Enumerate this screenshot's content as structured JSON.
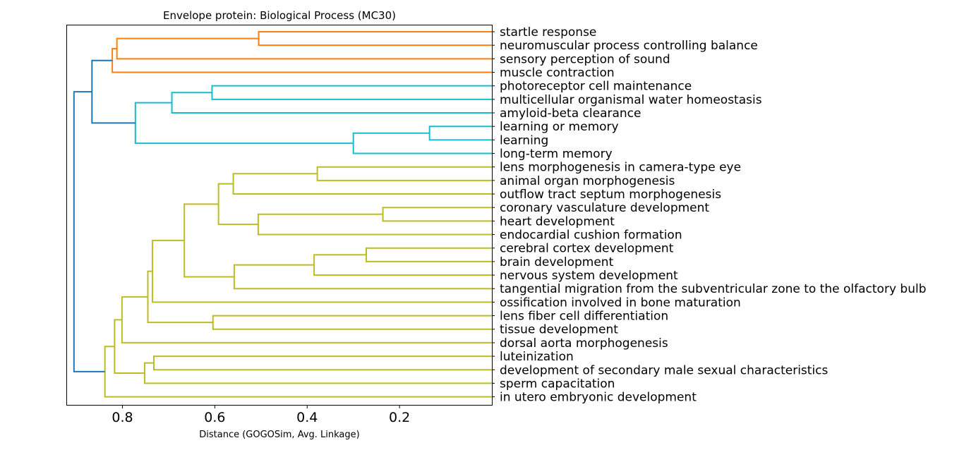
{
  "chart_data": {
    "type": "dendrogram",
    "title": "Envelope protein: Biological Process (MC30)",
    "xlabel": "Distance (GOGOSim, Avg. Linkage)",
    "xlim": [
      0.92,
      0.0
    ],
    "xticks": [
      {
        "value": 0.8,
        "label": "0.8"
      },
      {
        "value": 0.6,
        "label": "0.6"
      },
      {
        "value": 0.4,
        "label": "0.4"
      },
      {
        "value": 0.2,
        "label": "0.2"
      }
    ],
    "colors": {
      "orange": "#ff7f0e",
      "cyan": "#17becf",
      "olive": "#bcbd22",
      "blue": "#1f77b4"
    },
    "leaves": [
      "startle response",
      "neuromuscular process controlling balance",
      "sensory perception of sound",
      "muscle contraction",
      "photoreceptor cell maintenance",
      "multicellular organismal water homeostasis",
      "amyloid-beta clearance",
      "learning or memory",
      "learning",
      "long-term memory",
      "lens morphogenesis in camera-type eye",
      "animal organ morphogenesis",
      "outflow tract septum morphogenesis",
      "coronary vasculature development",
      "heart development",
      "endocardial cushion formation",
      "cerebral cortex development",
      "brain development",
      "nervous system development",
      "tangential migration from the subventricular zone to the olfactory bulb",
      "ossification involved in bone maturation",
      "lens fiber cell differentiation",
      "tissue development",
      "dorsal aorta morphogenesis",
      "luteinization",
      "development of secondary male sexual characteristics",
      "sperm capacitation",
      "in utero embryonic development"
    ],
    "merges": [
      {
        "id": "o1",
        "children": [
          "L0",
          "L1"
        ],
        "distance": 0.505,
        "color": "orange"
      },
      {
        "id": "o2",
        "children": [
          "o1",
          "L2"
        ],
        "distance": 0.812,
        "color": "orange"
      },
      {
        "id": "o3",
        "children": [
          "o2",
          "L3"
        ],
        "distance": 0.822,
        "color": "orange"
      },
      {
        "id": "c1",
        "children": [
          "L4",
          "L5"
        ],
        "distance": 0.606,
        "color": "cyan"
      },
      {
        "id": "c2",
        "children": [
          "c1",
          "L6"
        ],
        "distance": 0.693,
        "color": "cyan"
      },
      {
        "id": "c3",
        "children": [
          "L7",
          "L8"
        ],
        "distance": 0.135,
        "color": "cyan"
      },
      {
        "id": "c4",
        "children": [
          "c3",
          "L9"
        ],
        "distance": 0.3,
        "color": "cyan"
      },
      {
        "id": "c5",
        "children": [
          "c2",
          "c4"
        ],
        "distance": 0.772,
        "color": "cyan"
      },
      {
        "id": "b1",
        "children": [
          "o3",
          "c5"
        ],
        "distance": 0.866,
        "color": "blue"
      },
      {
        "id": "y1",
        "children": [
          "L10",
          "L11"
        ],
        "distance": 0.378,
        "color": "olive"
      },
      {
        "id": "y2",
        "children": [
          "y1",
          "L12"
        ],
        "distance": 0.56,
        "color": "olive"
      },
      {
        "id": "y3",
        "children": [
          "L13",
          "L14"
        ],
        "distance": 0.236,
        "color": "olive"
      },
      {
        "id": "y4",
        "children": [
          "y3",
          "L15"
        ],
        "distance": 0.506,
        "color": "olive"
      },
      {
        "id": "y5",
        "children": [
          "y2",
          "y4"
        ],
        "distance": 0.592,
        "color": "olive"
      },
      {
        "id": "y6",
        "children": [
          "L16",
          "L17"
        ],
        "distance": 0.272,
        "color": "olive"
      },
      {
        "id": "y7",
        "children": [
          "y6",
          "L18"
        ],
        "distance": 0.385,
        "color": "olive"
      },
      {
        "id": "y8",
        "children": [
          "y7",
          "L19"
        ],
        "distance": 0.558,
        "color": "olive"
      },
      {
        "id": "y9",
        "children": [
          "y5",
          "y8"
        ],
        "distance": 0.666,
        "color": "olive"
      },
      {
        "id": "y10",
        "children": [
          "y9",
          "L20"
        ],
        "distance": 0.735,
        "color": "olive"
      },
      {
        "id": "y11",
        "children": [
          "L21",
          "L22"
        ],
        "distance": 0.604,
        "color": "olive"
      },
      {
        "id": "y12",
        "children": [
          "y10",
          "y11"
        ],
        "distance": 0.745,
        "color": "olive"
      },
      {
        "id": "y13",
        "children": [
          "y12",
          "L23"
        ],
        "distance": 0.801,
        "color": "olive"
      },
      {
        "id": "y14",
        "children": [
          "L24",
          "L25"
        ],
        "distance": 0.732,
        "color": "olive"
      },
      {
        "id": "y15",
        "children": [
          "y14",
          "L26"
        ],
        "distance": 0.752,
        "color": "olive"
      },
      {
        "id": "y16",
        "children": [
          "y13",
          "y15"
        ],
        "distance": 0.817,
        "color": "olive"
      },
      {
        "id": "y17",
        "children": [
          "y16",
          "L27"
        ],
        "distance": 0.838,
        "color": "olive"
      },
      {
        "id": "b2",
        "children": [
          "b1",
          "y17"
        ],
        "distance": 0.905,
        "color": "blue"
      }
    ]
  }
}
